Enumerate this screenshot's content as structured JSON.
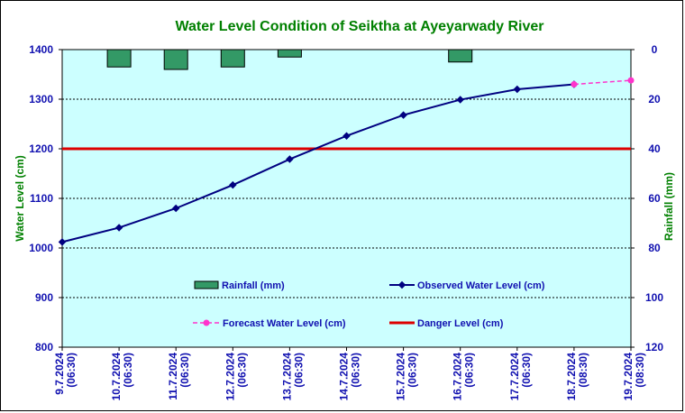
{
  "chart_data": {
    "type": "line",
    "title": "Water Level Condition of Seiktha at Ayeyarwady River",
    "ylabel": "Water Level (cm)",
    "y2label": "Rainfall (mm)",
    "ylim": [
      800,
      1400
    ],
    "y_ticks": [
      "1400",
      "1300",
      "1200",
      "1100",
      "1000",
      "900",
      "800"
    ],
    "y2lim": [
      0,
      120
    ],
    "y2_ticks": [
      "0",
      "20",
      "40",
      "60",
      "80",
      "100",
      "120"
    ],
    "categories": [
      "9.7.2024 (06:30)",
      "10.7.2024 (06:30)",
      "11.7.2024 (06:30)",
      "12.7.2024 (06:30)",
      "13.7.2024 (06:30)",
      "14.7.2024 (06:30)",
      "15.7.2024 (06:30)",
      "16.7.2024 (06:30)",
      "17.7.2024 (06:30)",
      "18.7.2024 (08:30)",
      "19.7.2024 (08:30)"
    ],
    "series": [
      {
        "name": "Rainfall (mm)",
        "kind": "bar",
        "axis": "right",
        "color": "#339966",
        "values": [
          null,
          7,
          8,
          7,
          3,
          null,
          null,
          5,
          null,
          null,
          null
        ]
      },
      {
        "name": "Observed Water Level (cm)",
        "kind": "line",
        "axis": "left",
        "color": "#000080",
        "values": [
          1012,
          1041,
          1080,
          1127,
          1179,
          1226,
          1268,
          1299,
          1320,
          1330,
          null
        ]
      },
      {
        "name": "Forecast Water Level (cm)",
        "kind": "dashed-line",
        "axis": "left",
        "color": "#ff33cc",
        "values": [
          null,
          null,
          null,
          null,
          null,
          null,
          null,
          null,
          null,
          1330,
          1338
        ]
      },
      {
        "name": "Danger Level (cm)",
        "kind": "hline",
        "axis": "left",
        "color": "#dd0000",
        "value": 1200
      }
    ],
    "grid": true,
    "legend_placement": "inside-bottom",
    "colors": {
      "plot_bg": "#ccffff",
      "title": "#008000",
      "axis_titles": "#008000",
      "tick_labels": "#1010b0"
    }
  }
}
